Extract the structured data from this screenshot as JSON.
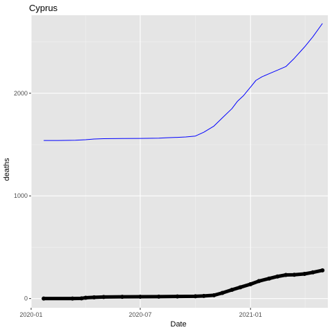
{
  "chart_data": {
    "type": "line",
    "title": "Cyprus",
    "xlabel": "Date",
    "ylabel": "deaths",
    "x_ticks": [
      "2020-01",
      "2020-07",
      "2021-01"
    ],
    "y_ticks": [
      0,
      1000,
      2000
    ],
    "xlim": [
      "2020-01-01",
      "2021-05-10"
    ],
    "ylim": [
      -90,
      2760
    ],
    "grid": true,
    "background": "#e5e5e5",
    "series": [
      {
        "color": "#0000ff",
        "style": "thin-line",
        "points": [
          [
            "2020-01-22",
            1540
          ],
          [
            "2020-02-15",
            1540
          ],
          [
            "2020-03-15",
            1542
          ],
          [
            "2020-04-01",
            1547
          ],
          [
            "2020-04-15",
            1554
          ],
          [
            "2020-05-01",
            1557
          ],
          [
            "2020-06-01",
            1559
          ],
          [
            "2020-07-01",
            1560
          ],
          [
            "2020-08-01",
            1562
          ],
          [
            "2020-08-15",
            1567
          ],
          [
            "2020-09-01",
            1570
          ],
          [
            "2020-09-15",
            1574
          ],
          [
            "2020-10-01",
            1583
          ],
          [
            "2020-10-15",
            1620
          ],
          [
            "2020-11-01",
            1680
          ],
          [
            "2020-11-15",
            1760
          ],
          [
            "2020-12-01",
            1850
          ],
          [
            "2020-12-10",
            1920
          ],
          [
            "2020-12-20",
            1975
          ],
          [
            "2021-01-01",
            2060
          ],
          [
            "2021-01-10",
            2125
          ],
          [
            "2021-01-20",
            2160
          ],
          [
            "2021-02-01",
            2190
          ],
          [
            "2021-02-15",
            2225
          ],
          [
            "2021-03-01",
            2260
          ],
          [
            "2021-03-15",
            2340
          ],
          [
            "2021-04-01",
            2450
          ],
          [
            "2021-04-15",
            2550
          ],
          [
            "2021-05-01",
            2680
          ]
        ]
      },
      {
        "color": "#000000",
        "style": "thick-points",
        "points": [
          [
            "2020-01-22",
            0
          ],
          [
            "2020-03-10",
            0
          ],
          [
            "2020-03-25",
            2
          ],
          [
            "2020-04-01",
            8
          ],
          [
            "2020-04-15",
            12
          ],
          [
            "2020-05-01",
            15
          ],
          [
            "2020-06-01",
            17
          ],
          [
            "2020-07-01",
            18
          ],
          [
            "2020-08-01",
            19
          ],
          [
            "2020-09-01",
            20
          ],
          [
            "2020-10-01",
            22
          ],
          [
            "2020-10-15",
            25
          ],
          [
            "2020-11-01",
            32
          ],
          [
            "2020-11-15",
            55
          ],
          [
            "2020-12-01",
            85
          ],
          [
            "2020-12-15",
            110
          ],
          [
            "2021-01-01",
            140
          ],
          [
            "2021-01-15",
            170
          ],
          [
            "2021-02-01",
            195
          ],
          [
            "2021-02-15",
            215
          ],
          [
            "2021-03-01",
            230
          ],
          [
            "2021-03-15",
            232
          ],
          [
            "2021-04-01",
            240
          ],
          [
            "2021-04-15",
            255
          ],
          [
            "2021-05-01",
            275
          ]
        ]
      }
    ]
  }
}
